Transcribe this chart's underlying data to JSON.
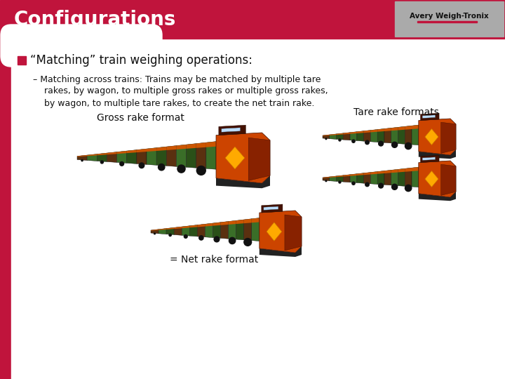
{
  "title": "Configurations",
  "title_bg_color": "#c0143c",
  "title_text_color": "#ffffff",
  "slide_bg_color": "#ffffff",
  "logo_bg_color": "#aaaaaa",
  "logo_text": "Avery Weigh-Tronix",
  "bullet_color": "#c0143c",
  "bullet_text": "“Matching” train weighing operations:",
  "bullet_text_color": "#111111",
  "sub_bullet_dash": "–",
  "sub_bullet_line1": "Matching across trains: Trains may be matched by multiple tare",
  "sub_bullet_line2": "rakes, by wagon, to multiple gross rakes or multiple gross rakes,",
  "sub_bullet_line3": "by wagon, to multiple tare rakes, to create the net train rake.",
  "label_gross": "Gross rake format",
  "label_tare": "Tare rake formats",
  "label_net": "= Net rake format",
  "left_panel_color": "#c0143c",
  "font_family": "DejaVu Sans"
}
